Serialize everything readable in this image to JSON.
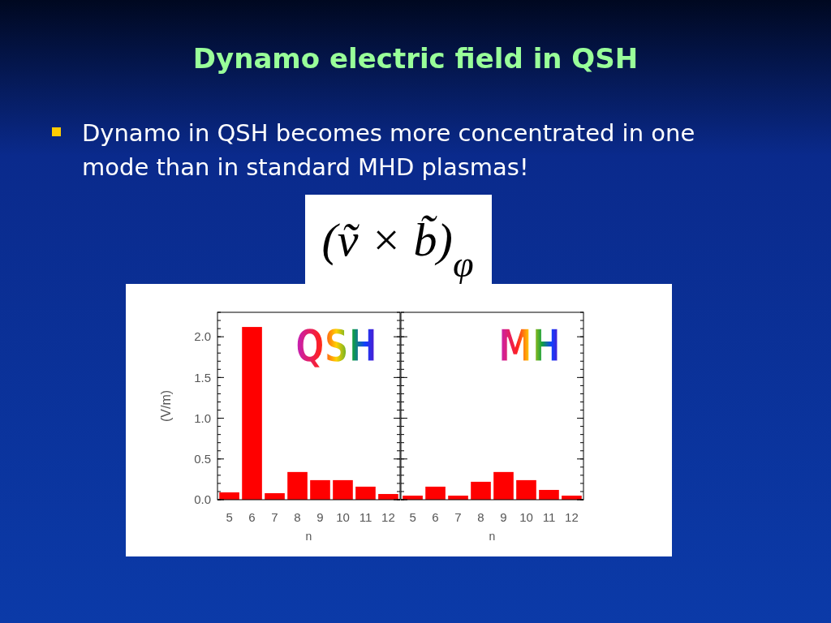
{
  "chart_data": [
    {
      "type": "bar",
      "title": "QSH",
      "xlabel": "n",
      "ylabel": "(V/m)",
      "categories": [
        "5",
        "6",
        "7",
        "8",
        "9",
        "10",
        "11",
        "12"
      ],
      "values": [
        0.09,
        2.12,
        0.08,
        0.34,
        0.24,
        0.24,
        0.16,
        0.07
      ],
      "color": "#ff0000",
      "ylim": [
        0,
        2.3
      ],
      "yticks": [
        {
          "value": 0,
          "label": "0.0"
        },
        {
          "value": 0.5,
          "label": "0.5"
        },
        {
          "value": 1,
          "label": "1.0"
        },
        {
          "value": 1.5,
          "label": "1.5"
        },
        {
          "value": 2,
          "label": "2.0"
        }
      ],
      "grid": false,
      "annotations": [
        "Dynamo electric field in QSH",
        "Dynamo in QSH becomes more concentrated in one mode than in standard MHD plasmas!",
        "(ṽ × b̃)$_{φ}$"
      ]
    },
    {
      "type": "bar",
      "title": "MH",
      "xlabel": "n",
      "categories": [
        "5",
        "6",
        "7",
        "8",
        "9",
        "10",
        "11",
        "12"
      ],
      "values": [
        0.05,
        0.16,
        0.05,
        0.22,
        0.34,
        0.24,
        0.12,
        0.05
      ],
      "color": "#ff0000",
      "ylim": [
        0,
        2.3
      ],
      "yticks": [
        {
          "value": 0,
          "label": null
        },
        {
          "value": 0.5,
          "label": null
        },
        {
          "value": 1,
          "label": null
        },
        {
          "value": 1.5,
          "label": null
        },
        {
          "value": 2,
          "label": null
        }
      ],
      "grid": false,
      "tick_labels": "x"
    }
  ]
}
